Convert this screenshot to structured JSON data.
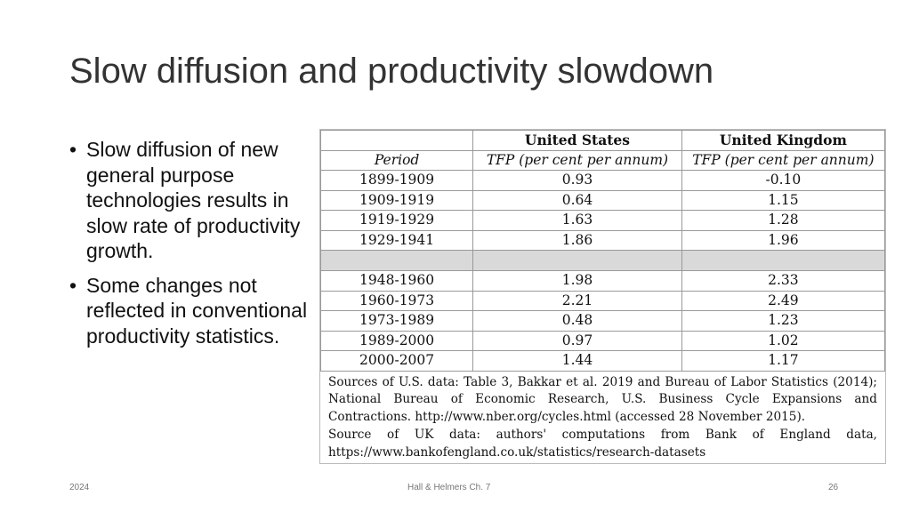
{
  "title": "Slow diffusion and productivity slowdown",
  "bullets": [
    "Slow diffusion of new general purpose technologies results in slow rate of productivity growth.",
    "Some changes not reflected in conventional productivity statistics."
  ],
  "table": {
    "header1": [
      "",
      "United States",
      "United Kingdom"
    ],
    "header2": [
      "Period",
      "TFP (per cent per annum)",
      "TFP (per cent per annum)"
    ],
    "rows_before_gap": [
      [
        "1899-1909",
        "0.93",
        "-0.10"
      ],
      [
        "1909-1919",
        "0.64",
        "1.15"
      ],
      [
        "1919-1929",
        "1.63",
        "1.28"
      ],
      [
        "1929-1941",
        "1.86",
        "1.96"
      ]
    ],
    "rows_after_gap": [
      [
        "1948-1960",
        "1.98",
        "2.33"
      ],
      [
        "1960-1973",
        "2.21",
        "2.49"
      ],
      [
        "1973-1989",
        "0.48",
        "1.23"
      ],
      [
        "1989-2000",
        "0.97",
        "1.02"
      ],
      [
        "2000-2007",
        "1.44",
        "1.17"
      ]
    ],
    "sources_us": "Sources of U.S. data: Table 3, Bakkar et al. 2019 and Bureau of Labor Statistics (2014); National Bureau of Economic Research, U.S. Business Cycle Expansions and Contractions. http://www.nber.org/cycles.html (accessed 28 November 2015).",
    "sources_uk": "Source of UK data: authors' computations from Bank of England data, https://www.bankofengland.co.uk/statistics/research-datasets"
  },
  "footer": {
    "left": "2024",
    "center": "Hall & Helmers Ch. 7",
    "right": "26"
  }
}
